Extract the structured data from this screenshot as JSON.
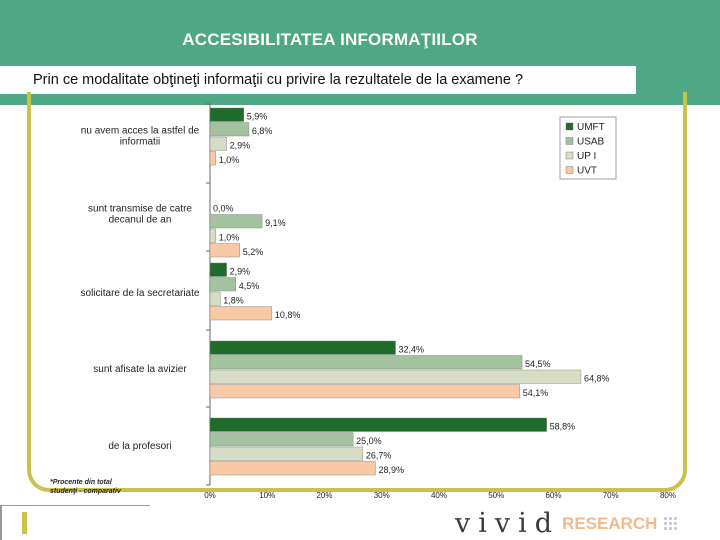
{
  "title": "ACCESIBILITATEA INFORMAŢIILOR",
  "subtitle": "Prin ce modalitate obţineţi informaţii cu privire la rezultatele de la examene ?",
  "footnote": [
    "*Procente din total",
    "studenţi - comparativ"
  ],
  "brand": {
    "vivid": "vivid",
    "research": "RESEARCH"
  },
  "colors": {
    "header": "#4fa885",
    "frame": "#c9c24a"
  },
  "chart_data": {
    "type": "bar",
    "orientation": "horizontal",
    "categories": [
      [
        "nu avem acces la astfel de",
        "informatii"
      ],
      [
        "sunt transmise de catre",
        "decanul de an"
      ],
      [
        "solicitare de la secretariate"
      ],
      [
        "sunt afisate la avizier"
      ],
      [
        "de la profesori"
      ]
    ],
    "series": [
      {
        "name": "UMFT",
        "color": "#1e6b2a",
        "values": [
          5.9,
          0.0,
          2.9,
          32.4,
          58.8
        ],
        "labels": [
          "5,9%",
          "0,0%",
          "2,9%",
          "32,4%",
          "58,8%"
        ]
      },
      {
        "name": "USAB",
        "color": "#a3c2a0",
        "values": [
          6.8,
          9.1,
          4.5,
          54.5,
          25.0
        ],
        "labels": [
          "6,8%",
          "9,1%",
          "4,5%",
          "54,5%",
          "25,0%"
        ]
      },
      {
        "name": "UP I",
        "color": "#d6dcc6",
        "values": [
          2.9,
          1.0,
          1.8,
          64.8,
          26.7
        ],
        "labels": [
          "2,9%",
          "1,0%",
          "1,8%",
          "64,8%",
          "26,7%"
        ]
      },
      {
        "name": "UVT",
        "color": "#f8c9a4",
        "values": [
          1.0,
          5.2,
          10.8,
          54.1,
          28.9
        ],
        "labels": [
          "1,0%",
          "5,2%",
          "10,8%",
          "54,1%",
          "28,9%"
        ]
      }
    ],
    "xticks": [
      "0%",
      "10%",
      "20%",
      "30%",
      "40%",
      "50%",
      "60%",
      "70%",
      "80%"
    ],
    "xlim": [
      0,
      80
    ],
    "legend": "top-right"
  }
}
